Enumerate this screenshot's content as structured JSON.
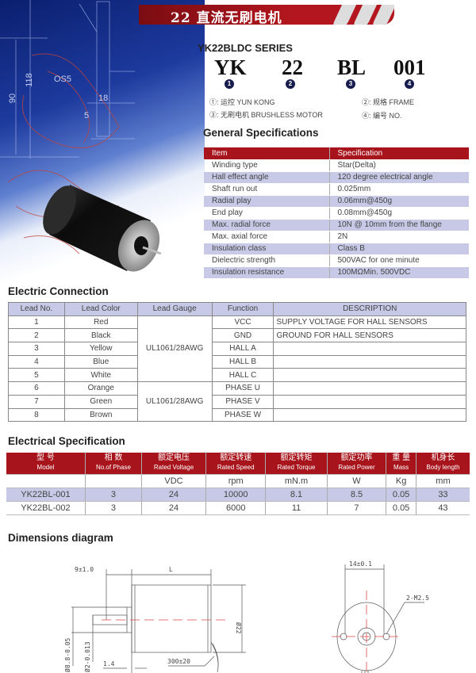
{
  "hero": {
    "drawing_labels": [
      "OS5",
      "118",
      "90",
      "18",
      "5"
    ]
  },
  "banner": {
    "title": "22 直流无刷电机"
  },
  "series": {
    "title": "YK22BLDC SERIES",
    "codes": [
      {
        "part": "YK",
        "index": "1"
      },
      {
        "part": "22",
        "index": "2"
      },
      {
        "part": "BL",
        "index": "3"
      },
      {
        "part": "001",
        "index": "4"
      }
    ],
    "legend": [
      "①: 运控  YUN KONG",
      "②: 规格  FRAME",
      "③: 无刷电机  BRUSHLESS MOTOR",
      "④: 编号  NO."
    ]
  },
  "general": {
    "heading": "General Specifications",
    "headers": [
      "Item",
      "Specification"
    ],
    "rows": [
      [
        "Winding type",
        "Star(Delta)"
      ],
      [
        "Hall effect angle",
        "120 degree electrical angle"
      ],
      [
        "Shaft run out",
        "0.025mm"
      ],
      [
        "Radial play",
        "0.06mm@450g"
      ],
      [
        "End play",
        "0.08mm@450g"
      ],
      [
        "Max. radial force",
        "10N @ 10mm from the flange"
      ],
      [
        "Max. axial force",
        "2N"
      ],
      [
        "Insulation class",
        "Class B"
      ],
      [
        "Dielectric strength",
        "500VAC for one minute"
      ],
      [
        "Insulation resistance",
        "100MΩMin. 500VDC"
      ]
    ]
  },
  "connection": {
    "heading": "Electric Connection",
    "headers": [
      "Lead No.",
      "Lead Color",
      "Lead Gauge",
      "Function",
      "DESCRIPTION"
    ],
    "gauge_groups": [
      "UL1061/28AWG",
      "UL1061/28AWG"
    ],
    "rows": [
      [
        "1",
        "Red",
        "VCC",
        "SUPPLY VOLTAGE FOR HALL SENSORS"
      ],
      [
        "2",
        "Black",
        "GND",
        "GROUND FOR HALL SENSORS"
      ],
      [
        "3",
        "Yellow",
        "HALL A",
        ""
      ],
      [
        "4",
        "Blue",
        "HALL B",
        ""
      ],
      [
        "5",
        "White",
        "HALL C",
        ""
      ],
      [
        "6",
        "Orange",
        "PHASE U",
        ""
      ],
      [
        "7",
        "Green",
        "PHASE V",
        ""
      ],
      [
        "8",
        "Brown",
        "PHASE W",
        ""
      ]
    ]
  },
  "electrical": {
    "heading": "Electrical Specification",
    "headers": [
      {
        "cn": "型  号",
        "en": "Model"
      },
      {
        "cn": "相  数",
        "en": "No.of Phase"
      },
      {
        "cn": "额定电压",
        "en": "Rated Voltage"
      },
      {
        "cn": "额定转速",
        "en": "Rated Speed"
      },
      {
        "cn": "额定转矩",
        "en": "Rated Torque"
      },
      {
        "cn": "额定功率",
        "en": "Rated Power"
      },
      {
        "cn": "重  量",
        "en": "Mass"
      },
      {
        "cn": "机身长",
        "en": "Body length"
      }
    ],
    "units": [
      "",
      "",
      "VDC",
      "rpm",
      "mN.m",
      "W",
      "Kg",
      "mm"
    ],
    "rows": [
      [
        "YK22BL-001",
        "3",
        "24",
        "10000",
        "8.1",
        "8.5",
        "0.05",
        "33"
      ],
      [
        "YK22BL-002",
        "3",
        "24",
        "6000",
        "11",
        "7",
        "0.05",
        "43"
      ]
    ]
  },
  "dimensions": {
    "heading": "Dimensions  diagram",
    "labels": {
      "shaft_len": "9±1.0",
      "body_len": "L",
      "body_dia": "Ø22",
      "flange_dia": "Ø8.8-0.05",
      "shaft_dia": "Ø2-0.013",
      "flange_thk": "1.4",
      "lead_len": "300±20",
      "hole_spacing": "14±0.1",
      "holes": "2-M2.5"
    }
  },
  "colors": {
    "accent_red": "#a8141b",
    "row_tint": "#c7c9e6",
    "badge_navy": "#161c4e"
  }
}
